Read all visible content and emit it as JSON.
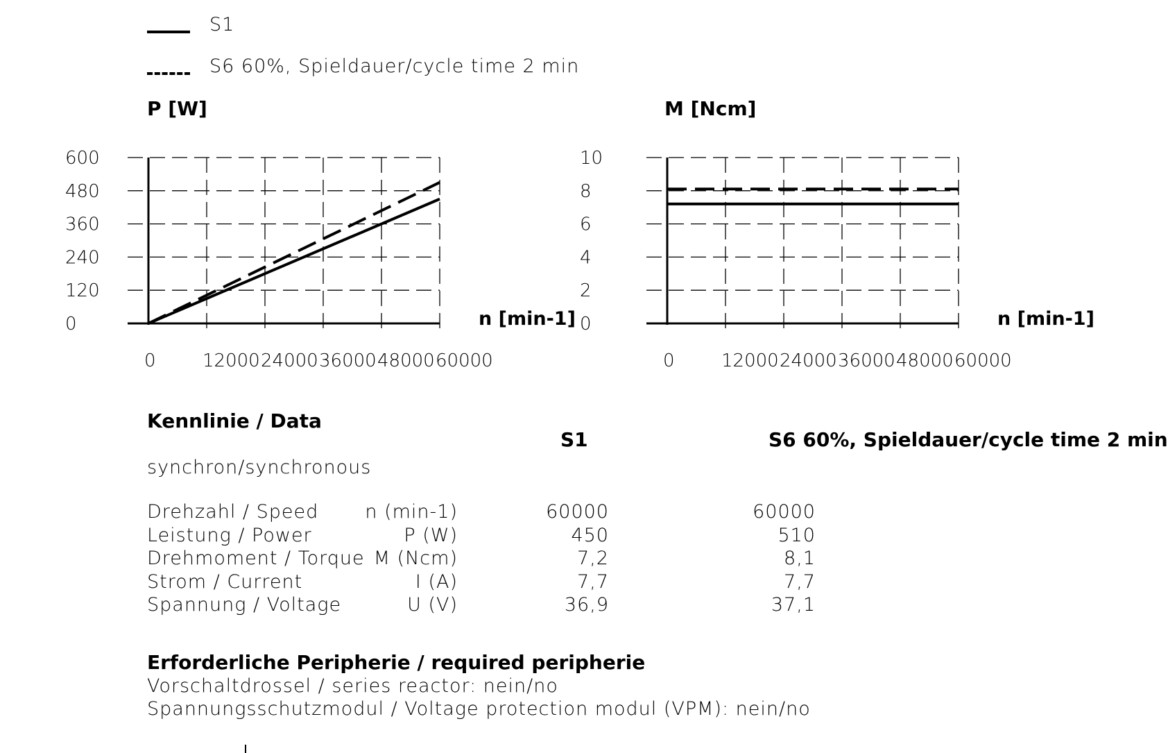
{
  "legend": [
    {
      "label": "S1",
      "style": "solid"
    },
    {
      "label": "S6 60%, Spieldauer/cycle time 2 min",
      "style": "dashed"
    }
  ],
  "chart_data": [
    {
      "type": "line",
      "ylabel": "P [W]",
      "xlabel": "n [min-1]",
      "xticks": [
        "0",
        "12000",
        "24000",
        "36000",
        "48000",
        "60000"
      ],
      "yticks": [
        "0",
        "120",
        "240",
        "360",
        "480",
        "600"
      ],
      "xlim": [
        0,
        60000
      ],
      "ylim": [
        0,
        600
      ],
      "grid": true,
      "series": [
        {
          "name": "S1",
          "style": "solid",
          "x": [
            0,
            60000
          ],
          "y": [
            0,
            450
          ]
        },
        {
          "name": "S6 60%, Spieldauer/cycle time 2 min",
          "style": "dashed",
          "x": [
            0,
            60000
          ],
          "y": [
            0,
            510
          ]
        }
      ]
    },
    {
      "type": "line",
      "ylabel": "M [Ncm]",
      "xlabel": "n [min-1]",
      "xticks": [
        "0",
        "12000",
        "24000",
        "36000",
        "48000",
        "60000"
      ],
      "yticks": [
        "0",
        "2",
        "4",
        "6",
        "8",
        "10"
      ],
      "xlim": [
        0,
        60000
      ],
      "ylim": [
        0,
        10
      ],
      "grid": true,
      "series": [
        {
          "name": "S1",
          "style": "solid",
          "x": [
            0,
            60000
          ],
          "y": [
            7.2,
            7.2
          ]
        },
        {
          "name": "S6 60%, Spieldauer/cycle time 2 min",
          "style": "dashed",
          "x": [
            0,
            60000
          ],
          "y": [
            8.1,
            8.1
          ]
        }
      ]
    }
  ],
  "data_section": {
    "title": "Kennlinie / Data",
    "col_s1": "S1",
    "col_s6": "S6 60%, Spieldauer/cycle time 2 min",
    "subtitle": "synchron/synchronous",
    "rows": [
      {
        "label": "Drehzahl / Speed",
        "symbol": "n (min-1)",
        "s1": "60000",
        "s6": "60000"
      },
      {
        "label": "Leistung / Power",
        "symbol": "P (W)",
        "s1": "450",
        "s6": "510"
      },
      {
        "label": "Drehmoment / Torque",
        "symbol": "M (Ncm)",
        "s1": "7,2",
        "s6": "8,1"
      },
      {
        "label": "Strom / Current",
        "symbol": "I (A)",
        "s1": "7,7",
        "s6": "7,7"
      },
      {
        "label": "Spannung / Voltage",
        "symbol": "U (V)",
        "s1": "36,9",
        "s6": "37,1"
      }
    ]
  },
  "peripherie": {
    "title": "Erforderliche Peripherie / required peripherie",
    "line1": "Vorschaltdrossel / series reactor: nein/no",
    "line2": "Spannungsschutzmodul / Voltage protection modul (VPM):   nein/no"
  }
}
